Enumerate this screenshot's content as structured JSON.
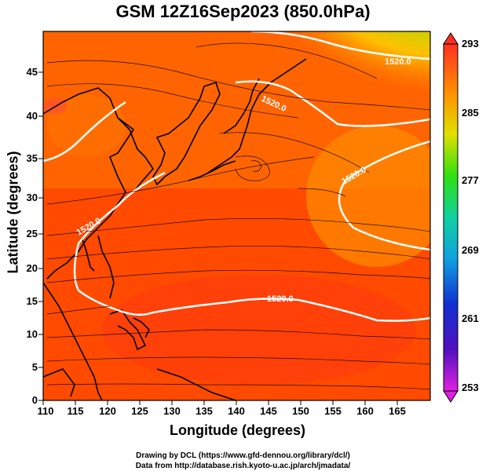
{
  "title": "GSM 12Z16Sep2023 (850.0hPa)",
  "xlabel": "Longitude (degrees)",
  "ylabel": "Latitude (degrees)",
  "x_ticks": [
    "110",
    "115",
    "120",
    "125",
    "130",
    "135",
    "140",
    "145",
    "150",
    "155",
    "160",
    "165"
  ],
  "y_ticks": [
    "0",
    "5",
    "10",
    "15",
    "20",
    "25",
    "30",
    "35",
    "40",
    "45"
  ],
  "colorbar_ticks": [
    "293",
    "285",
    "277",
    "269",
    "261",
    "253"
  ],
  "contour_labels": [
    "1520.0",
    "1520.0",
    "1520.0",
    "1520.0",
    "1520.0"
  ],
  "credit_line1": "Drawing by DCL (https://www.gfd-dennou.org/library/dcl/)",
  "credit_line2": "Data from http://database.rish.kyoto-u.ac.jp/arch/jmadata/",
  "map_data": {
    "field": "temperature (K) at 850 hPa",
    "lon_range": [
      110,
      170
    ],
    "lat_range": [
      0,
      50
    ],
    "color_range": [
      253,
      293
    ],
    "contour_level": 1520.0,
    "colors": {
      "warm": "#ff4a00",
      "hot": "#ff2a10",
      "orange": "#ff8a00",
      "yellow": "#ffd400",
      "green": "#36e000",
      "contour": "#ffffff",
      "streamline": "#000000"
    }
  }
}
